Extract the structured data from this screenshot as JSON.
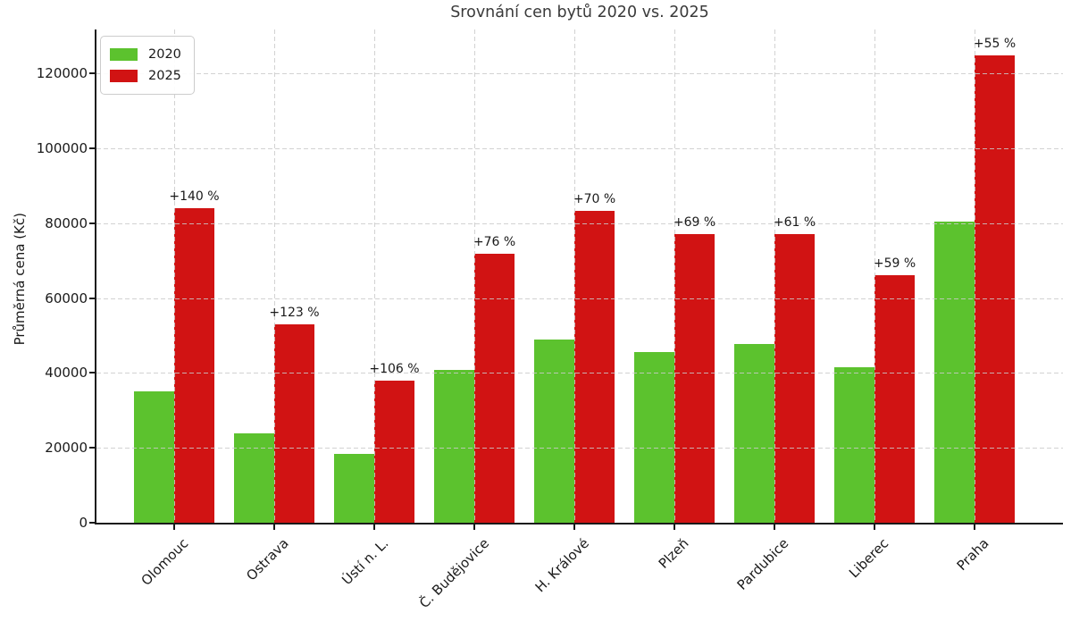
{
  "chart_data": {
    "type": "bar",
    "title": "Srovnání cen bytů 2020 vs. 2025",
    "xlabel": "",
    "ylabel": "Průměrná cena (Kč)",
    "categories": [
      "Olomouc",
      "Ostrava",
      "Ústí n. L.",
      "Č. Budějovice",
      "H. Králové",
      "Plzeň",
      "Pardubice",
      "Liberec",
      "Praha"
    ],
    "series": [
      {
        "name": "2020",
        "color": "#5cc22e",
        "values": [
          35000,
          23800,
          18400,
          40800,
          49000,
          45700,
          47800,
          41500,
          80500
        ]
      },
      {
        "name": "2025",
        "color": "#d11313",
        "values": [
          84000,
          53000,
          37900,
          71800,
          83300,
          77200,
          77000,
          66000,
          124800
        ]
      }
    ],
    "annotations": [
      "+140 %",
      "+123 %",
      "+106 %",
      "+76 %",
      "+70 %",
      "+69 %",
      "+61 %",
      "+59 %",
      "+55 %"
    ],
    "yticks": [
      0,
      20000,
      40000,
      60000,
      80000,
      100000,
      120000
    ],
    "ylim": [
      0,
      131700
    ],
    "grid": {
      "visible": true,
      "style": "dashed",
      "axes": "both",
      "above_bars": true
    },
    "legend_position": "upper-left",
    "colors": {
      "bar_2020": "#5cc22e",
      "bar_2025": "#d11313",
      "grid": "#cacaca",
      "axis": "#1a1a1a",
      "title_text": "#3a3a3a",
      "tick_text": "#1a1a1a"
    }
  }
}
